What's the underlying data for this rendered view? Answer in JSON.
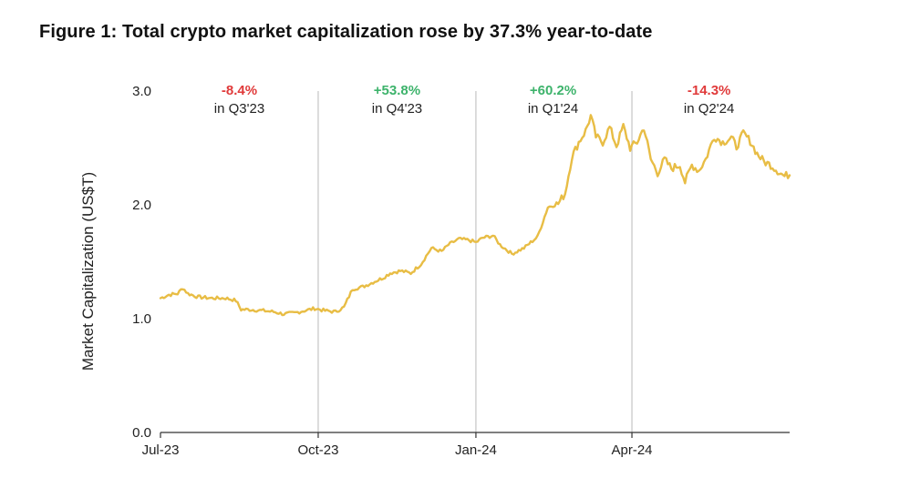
{
  "figure": {
    "title": "Figure 1: Total crypto market capitalization rose by 37.3% year-to-date"
  },
  "chart_data": {
    "type": "line",
    "title": "Figure 1: Total crypto market capitalization rose by 37.3% year-to-date",
    "xlabel": "",
    "ylabel": "Market Capitalization (US$T)",
    "ylim": [
      0,
      3
    ],
    "yticks": [
      0,
      1,
      2,
      3
    ],
    "ytick_labels": [
      "0.0",
      "1.0",
      "2.0",
      "3.0"
    ],
    "x_tick_labels": [
      "Jul-23",
      "Oct-23",
      "Jan-24",
      "Apr-24"
    ],
    "x_tick_days": [
      0,
      92,
      184,
      275
    ],
    "x_range_days": [
      0,
      367
    ],
    "quarter_dividers_days": [
      92,
      184,
      275
    ],
    "line_color": "#e8bd45",
    "positive_color": "#3db36b",
    "negative_color": "#e03a3a",
    "annotations": [
      {
        "pct": "-8.4%",
        "label": "in Q3'23",
        "sign": "negative",
        "center_day": 46
      },
      {
        "pct": "+53.8%",
        "label": "in Q4'23",
        "sign": "positive",
        "center_day": 138
      },
      {
        "pct": "+60.2%",
        "label": "in Q1'24",
        "sign": "positive",
        "center_day": 229
      },
      {
        "pct": "-14.3%",
        "label": "in Q2'24",
        "sign": "negative",
        "center_day": 320
      }
    ],
    "series": [
      {
        "name": "Total crypto market capitalization",
        "points": [
          [
            0,
            1.18
          ],
          [
            5,
            1.21
          ],
          [
            10,
            1.22
          ],
          [
            13,
            1.27
          ],
          [
            16,
            1.22
          ],
          [
            22,
            1.19
          ],
          [
            30,
            1.18
          ],
          [
            38,
            1.18
          ],
          [
            44,
            1.16
          ],
          [
            47,
            1.08
          ],
          [
            52,
            1.08
          ],
          [
            60,
            1.07
          ],
          [
            66,
            1.06
          ],
          [
            72,
            1.04
          ],
          [
            78,
            1.05
          ],
          [
            84,
            1.07
          ],
          [
            90,
            1.09
          ],
          [
            96,
            1.07
          ],
          [
            102,
            1.06
          ],
          [
            107,
            1.1
          ],
          [
            112,
            1.26
          ],
          [
            118,
            1.28
          ],
          [
            124,
            1.32
          ],
          [
            130,
            1.36
          ],
          [
            134,
            1.4
          ],
          [
            140,
            1.42
          ],
          [
            146,
            1.4
          ],
          [
            152,
            1.48
          ],
          [
            158,
            1.62
          ],
          [
            164,
            1.59
          ],
          [
            168,
            1.65
          ],
          [
            174,
            1.7
          ],
          [
            180,
            1.69
          ],
          [
            184,
            1.67
          ],
          [
            188,
            1.71
          ],
          [
            194,
            1.73
          ],
          [
            198,
            1.65
          ],
          [
            205,
            1.57
          ],
          [
            212,
            1.62
          ],
          [
            220,
            1.72
          ],
          [
            226,
            1.98
          ],
          [
            232,
            2.01
          ],
          [
            236,
            2.1
          ],
          [
            240,
            2.42
          ],
          [
            244,
            2.55
          ],
          [
            248,
            2.65
          ],
          [
            251,
            2.78
          ],
          [
            254,
            2.6
          ],
          [
            258,
            2.55
          ],
          [
            262,
            2.68
          ],
          [
            266,
            2.52
          ],
          [
            270,
            2.69
          ],
          [
            274,
            2.5
          ],
          [
            278,
            2.55
          ],
          [
            282,
            2.68
          ],
          [
            286,
            2.4
          ],
          [
            290,
            2.28
          ],
          [
            294,
            2.4
          ],
          [
            298,
            2.32
          ],
          [
            303,
            2.35
          ],
          [
            306,
            2.2
          ],
          [
            310,
            2.35
          ],
          [
            314,
            2.3
          ],
          [
            318,
            2.4
          ],
          [
            323,
            2.6
          ],
          [
            328,
            2.55
          ],
          [
            333,
            2.59
          ],
          [
            336,
            2.51
          ],
          [
            340,
            2.63
          ],
          [
            344,
            2.56
          ],
          [
            348,
            2.45
          ],
          [
            352,
            2.38
          ],
          [
            356,
            2.35
          ],
          [
            360,
            2.3
          ],
          [
            364,
            2.25
          ],
          [
            367,
            2.27
          ]
        ]
      }
    ]
  }
}
